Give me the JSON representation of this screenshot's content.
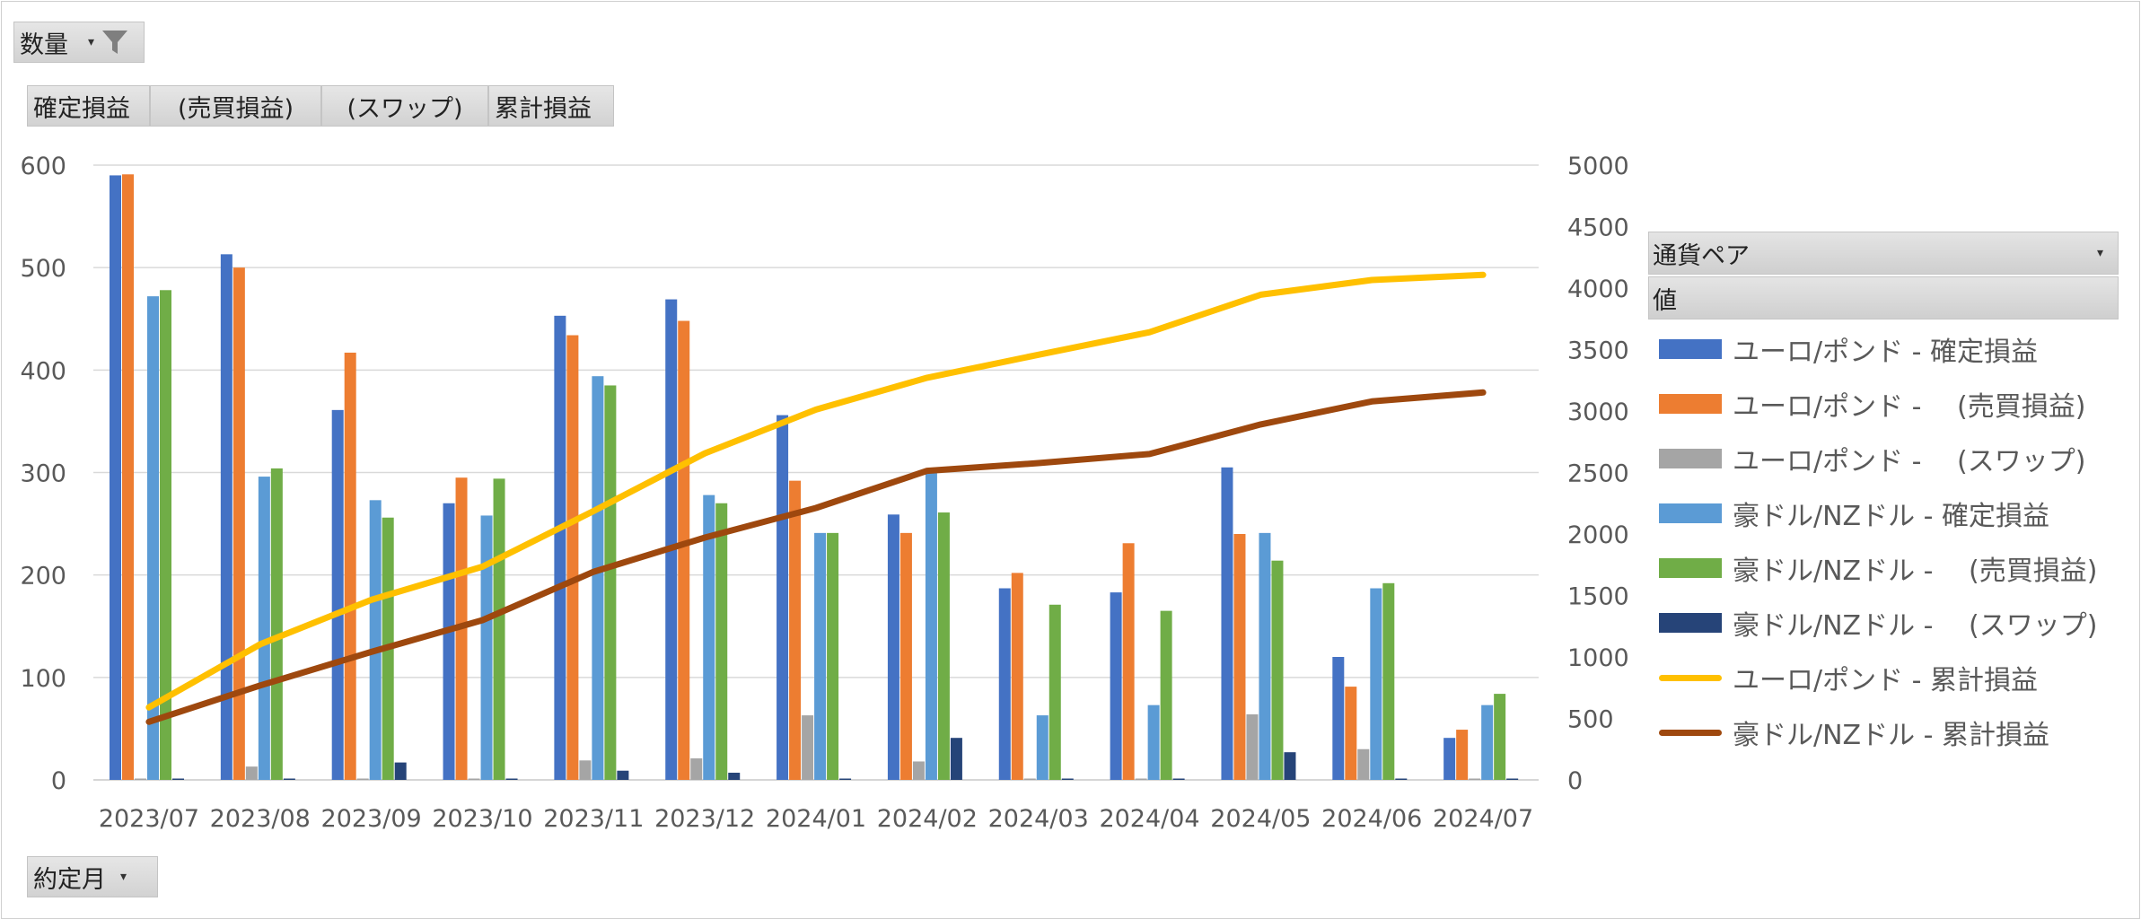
{
  "pivot_buttons": {
    "filter_field": "数量",
    "values": [
      "確定損益",
      "(売買損益)",
      "(スワップ)",
      "累計損益"
    ],
    "axis_field": "約定月"
  },
  "legend": {
    "header": "通貨ペア",
    "subheader": "値"
  },
  "colors": {
    "eur_gbp_realized": "#4472C4",
    "eur_gbp_trade": "#ED7D31",
    "eur_gbp_swap": "#A5A5A5",
    "aud_nzd_realized": "#5B9BD5",
    "aud_nzd_trade": "#70AD47",
    "aud_nzd_swap": "#264478",
    "eur_gbp_cum": "#FFC000",
    "aud_nzd_cum": "#9E480E"
  },
  "chart_data": {
    "type": "bar",
    "categories": [
      "2023/07",
      "2023/08",
      "2023/09",
      "2023/10",
      "2023/11",
      "2023/12",
      "2024/01",
      "2024/02",
      "2024/03",
      "2024/04",
      "2024/05",
      "2024/06",
      "2024/07"
    ],
    "ylim": [
      0,
      600
    ],
    "y2lim": [
      0,
      5000
    ],
    "yticks": [
      "600",
      "500",
      "400",
      "300",
      "200",
      "100",
      "0"
    ],
    "y2ticks": [
      "5000",
      "4500",
      "4000",
      "3500",
      "3000",
      "2500",
      "2000",
      "1500",
      "1000",
      "500",
      "0"
    ],
    "grid": true,
    "legend_position": "right",
    "series": [
      {
        "name": "ユーロ/ポンド - 確定損益",
        "axis": "left",
        "values": [
          590,
          513,
          361,
          270,
          453,
          469,
          356,
          259,
          187,
          183,
          305,
          120,
          41
        ]
      },
      {
        "name": "ユーロ/ポンド - 　(売買損益)",
        "axis": "left",
        "values": [
          591,
          500,
          417,
          295,
          434,
          448,
          292,
          241,
          202,
          231,
          240,
          91,
          49
        ]
      },
      {
        "name": "ユーロ/ポンド - 　(スワップ)",
        "axis": "left",
        "values": [
          0,
          13,
          0,
          0,
          19,
          21,
          63,
          18,
          0,
          0,
          64,
          30,
          0
        ]
      },
      {
        "name": "豪ドル/NZドル - 確定損益",
        "axis": "left",
        "values": [
          472,
          296,
          273,
          258,
          394,
          278,
          241,
          302,
          63,
          73,
          241,
          187,
          73
        ]
      },
      {
        "name": "豪ドル/NZドル - 　(売買損益)",
        "axis": "left",
        "values": [
          478,
          304,
          256,
          294,
          385,
          270,
          241,
          261,
          171,
          165,
          214,
          192,
          84
        ]
      },
      {
        "name": "豪ドル/NZドル - 　(スワップ)",
        "axis": "left",
        "values": [
          0,
          0,
          17,
          0,
          9,
          7,
          0,
          41,
          0,
          0,
          27,
          0,
          0
        ]
      },
      {
        "name": "ユーロ/ポンド - 累計損益",
        "axis": "right",
        "type": "line",
        "values": [
          590,
          1103,
          1464,
          1734,
          2187,
          2656,
          3012,
          3271,
          3458,
          3641,
          3946,
          4066,
          4107
        ]
      },
      {
        "name": "豪ドル/NZドル - 累計損益",
        "axis": "right",
        "type": "line",
        "values": [
          472,
          768,
          1041,
          1299,
          1693,
          1971,
          2212,
          2514,
          2577,
          2650,
          2891,
          3078,
          3151
        ]
      }
    ]
  }
}
